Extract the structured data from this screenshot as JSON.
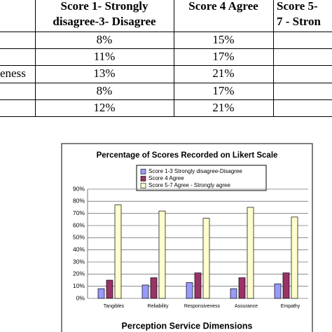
{
  "table": {
    "header": [
      [
        "Score 1- Strongly",
        "disagree-3- Disagree"
      ],
      [
        "Score 4 Agree"
      ],
      [
        "Score 5-",
        "7 - Stron"
      ]
    ],
    "rows": [
      {
        "values": [
          "8%",
          "15%"
        ]
      },
      {
        "values": [
          "11%",
          "17%"
        ]
      },
      {
        "label": "eness",
        "values": [
          "13%",
          "21%"
        ]
      },
      {
        "values": [
          "8%",
          "17%"
        ]
      },
      {
        "values": [
          "12%",
          "21%"
        ]
      }
    ]
  },
  "chart_data": {
    "type": "bar",
    "title": "Percentage of Scores Recorded on Likert Scale",
    "x_label": "Perception Service Dimensions",
    "categories": [
      "Tangibles",
      "Reliability",
      "Responsiveness",
      "Assurance",
      "Empathy"
    ],
    "series": [
      {
        "name": "Score 1-3 Strongly disagree-Disagree",
        "color": "#9999ff",
        "values": [
          8,
          11,
          13,
          8,
          12
        ]
      },
      {
        "name": "Score 4 Agree",
        "color": "#993366",
        "values": [
          15,
          17,
          21,
          17,
          21
        ]
      },
      {
        "name": "Score 5-7 Agree - Strongly agree",
        "color": "#ffffcc",
        "values": [
          77,
          72,
          66,
          75,
          67
        ]
      }
    ],
    "ylim": [
      0,
      90
    ],
    "yticks": [
      {
        "value": 0,
        "label": "0%"
      },
      {
        "value": 10,
        "label": "10%"
      },
      {
        "value": 20,
        "label": "20%"
      },
      {
        "value": 30,
        "label": "30%"
      },
      {
        "value": 40,
        "label": "40%"
      },
      {
        "value": 50,
        "label": "50%"
      },
      {
        "value": 60,
        "label": "60%"
      },
      {
        "value": 70,
        "label": "70%"
      },
      {
        "value": 80,
        "label": "80%"
      },
      {
        "value": 90,
        "label": "90%"
      }
    ],
    "grid": true
  }
}
